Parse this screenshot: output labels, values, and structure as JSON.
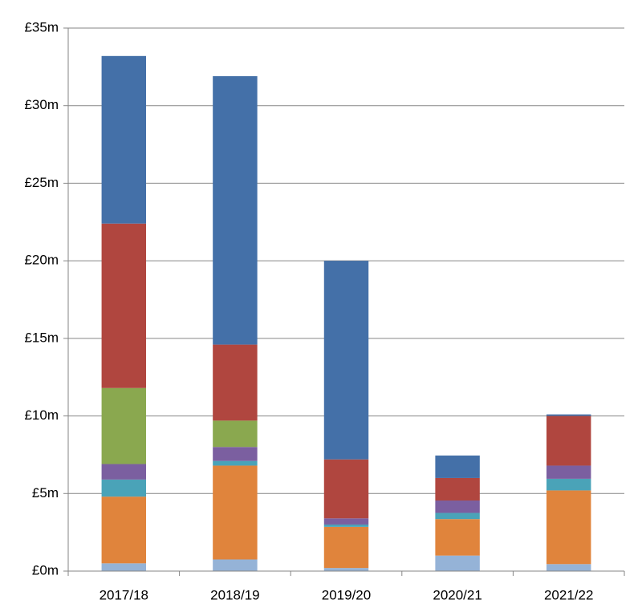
{
  "chart_data": {
    "type": "stacked-bar",
    "categories": [
      "2017/18",
      "2018/19",
      "2019/20",
      "2020/21",
      "2021/22"
    ],
    "series": [
      {
        "color": "#95b3d7",
        "values": [
          0.5,
          0.75,
          0.2,
          1.0,
          0.45
        ]
      },
      {
        "color": "#e0843c",
        "values": [
          4.3,
          6.05,
          2.65,
          2.35,
          4.75
        ]
      },
      {
        "color": "#4aa3b8",
        "values": [
          1.1,
          0.3,
          0.15,
          0.4,
          0.75
        ]
      },
      {
        "color": "#7b5fa0",
        "values": [
          1.0,
          0.9,
          0.4,
          0.8,
          0.85
        ]
      },
      {
        "color": "#8aa84f",
        "values": [
          4.9,
          1.7,
          0,
          0,
          0
        ]
      },
      {
        "color": "#b0463f",
        "values": [
          10.6,
          4.9,
          3.8,
          1.45,
          3.2
        ]
      },
      {
        "color": "#4470a8",
        "values": [
          10.8,
          17.3,
          12.8,
          1.45,
          0.1
        ]
      }
    ],
    "ylim": [
      0,
      35
    ],
    "yticks": [
      {
        "value": 0,
        "label": "£0m"
      },
      {
        "value": 5,
        "label": "£5m"
      },
      {
        "value": 10,
        "label": "£10m"
      },
      {
        "value": 15,
        "label": "£15m"
      },
      {
        "value": 20,
        "label": "£20m"
      },
      {
        "value": 25,
        "label": "£25m"
      },
      {
        "value": 30,
        "label": "£30m"
      },
      {
        "value": 35,
        "label": "£35m"
      }
    ],
    "grid": true
  }
}
